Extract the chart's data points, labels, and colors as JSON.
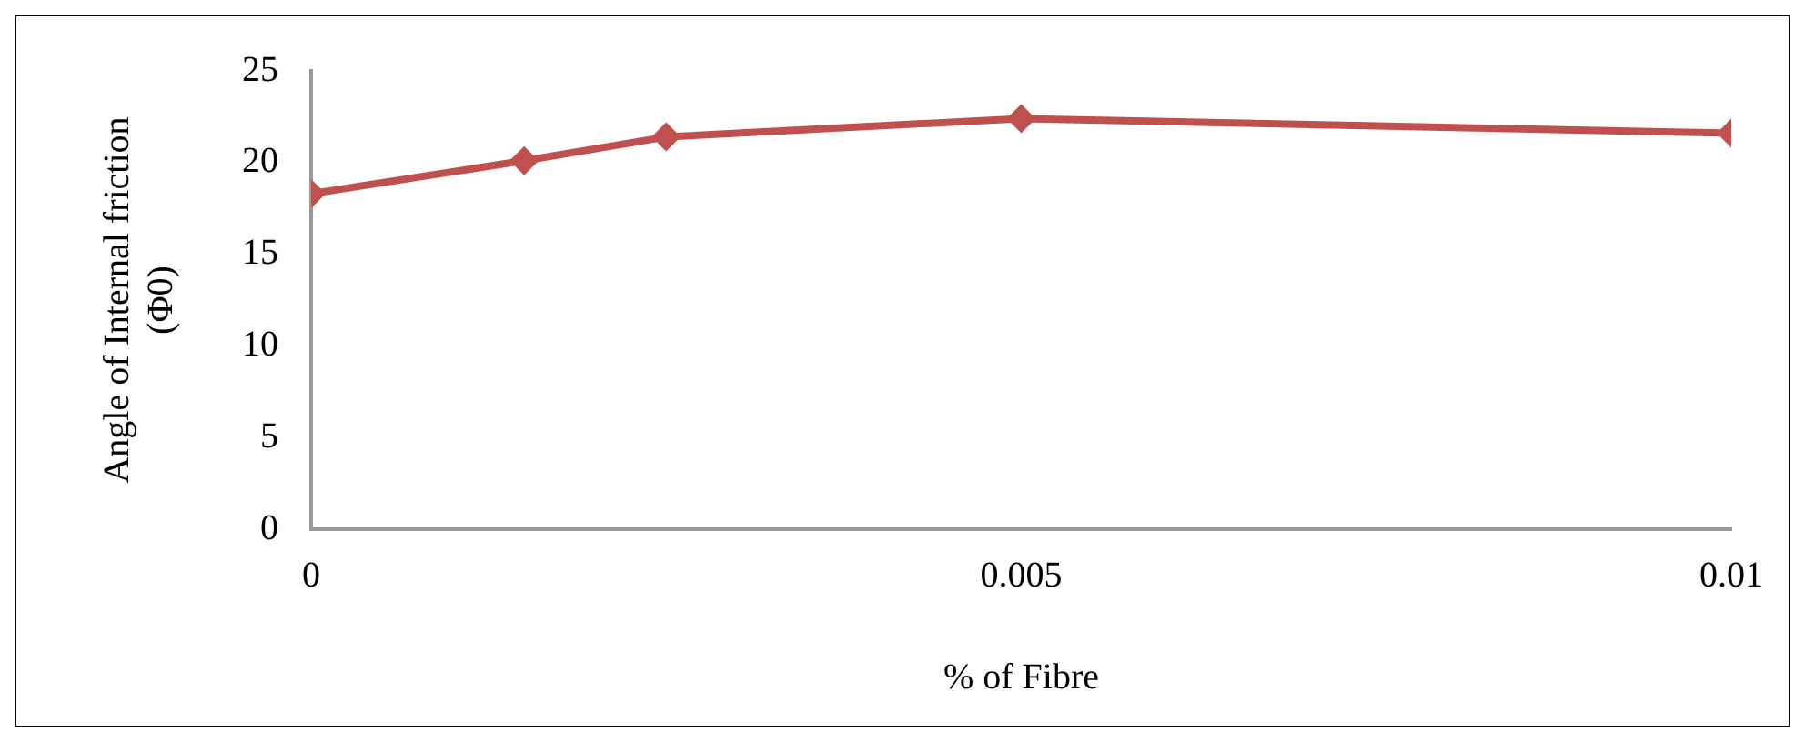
{
  "chart_data": {
    "type": "line",
    "xlabel": "% of Fibre",
    "ylabel": "Angle of Internal friction\n(Φ0)",
    "x": [
      0,
      0.0015,
      0.0025,
      0.005,
      0.01
    ],
    "series": [
      {
        "color": "#c0504d",
        "values": [
          18.3,
          20.1,
          21.4,
          22.4,
          21.6
        ]
      }
    ],
    "xlim": [
      0,
      0.01
    ],
    "xticks": [
      0,
      0.005,
      0.01
    ],
    "ylim": [
      0,
      25
    ],
    "yticks": [
      0,
      5,
      10,
      15,
      20,
      25
    ],
    "grid": false,
    "legend": false,
    "marker": "diamond",
    "line_style": "solid"
  }
}
